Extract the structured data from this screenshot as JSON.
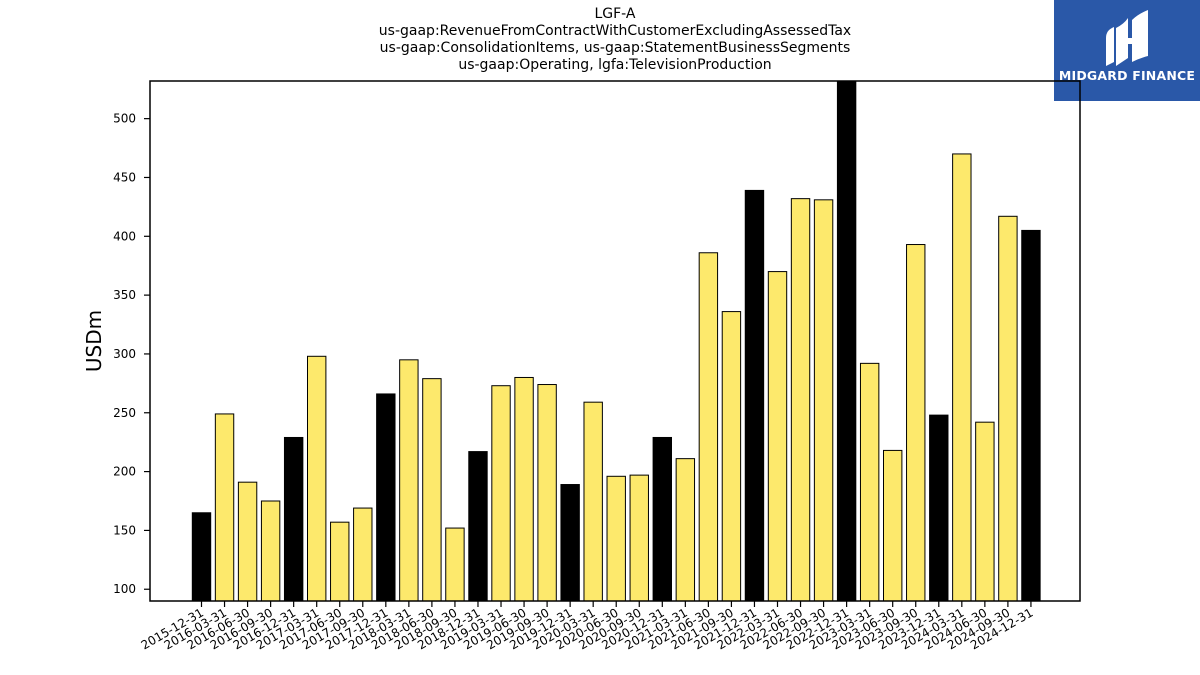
{
  "title_lines": [
    "LGF-A",
    "us-gaap:RevenueFromContractWithCustomerExcludingAssessedTax",
    "us-gaap:ConsolidationItems, us-gaap:StatementBusinessSegments",
    "us-gaap:Operating, lgfa:TelevisionProduction"
  ],
  "logo": {
    "text": "MIDGARD FINANCE",
    "bg_color": "#2a58a8"
  },
  "colors": {
    "quarter_bar": "#fde96c",
    "year_end_bar": "#000000",
    "edge": "#000000"
  },
  "chart_data": {
    "type": "bar",
    "title": "LGF-A",
    "ylabel": "USDm",
    "xlabel": "",
    "ylim": [
      90,
      532
    ],
    "yticks": [
      100,
      150,
      200,
      250,
      300,
      350,
      400,
      450,
      500
    ],
    "grid": false,
    "categories": [
      "2015-12-31",
      "2016-03-31",
      "2016-06-30",
      "2016-09-30",
      "2016-12-31",
      "2017-03-31",
      "2017-06-30",
      "2017-09-30",
      "2017-12-31",
      "2018-03-31",
      "2018-06-30",
      "2018-09-30",
      "2018-12-31",
      "2019-03-31",
      "2019-06-30",
      "2019-09-30",
      "2019-12-31",
      "2020-03-31",
      "2020-06-30",
      "2020-09-30",
      "2020-12-31",
      "2021-03-31",
      "2021-06-30",
      "2021-09-30",
      "2021-12-31",
      "2022-03-31",
      "2022-06-30",
      "2022-09-30",
      "2022-12-31",
      "2023-03-31",
      "2023-06-30",
      "2023-09-30",
      "2023-12-31",
      "2024-03-31",
      "2024-06-30",
      "2024-09-30",
      "2024-12-31"
    ],
    "values": [
      165,
      249,
      191,
      175,
      229,
      298,
      157,
      169,
      266,
      295,
      279,
      152,
      217,
      273,
      280,
      274,
      189,
      259,
      196,
      197,
      229,
      211,
      386,
      336,
      439,
      370,
      432,
      431,
      533,
      292,
      218,
      393,
      248,
      470,
      242,
      417,
      405
    ]
  }
}
